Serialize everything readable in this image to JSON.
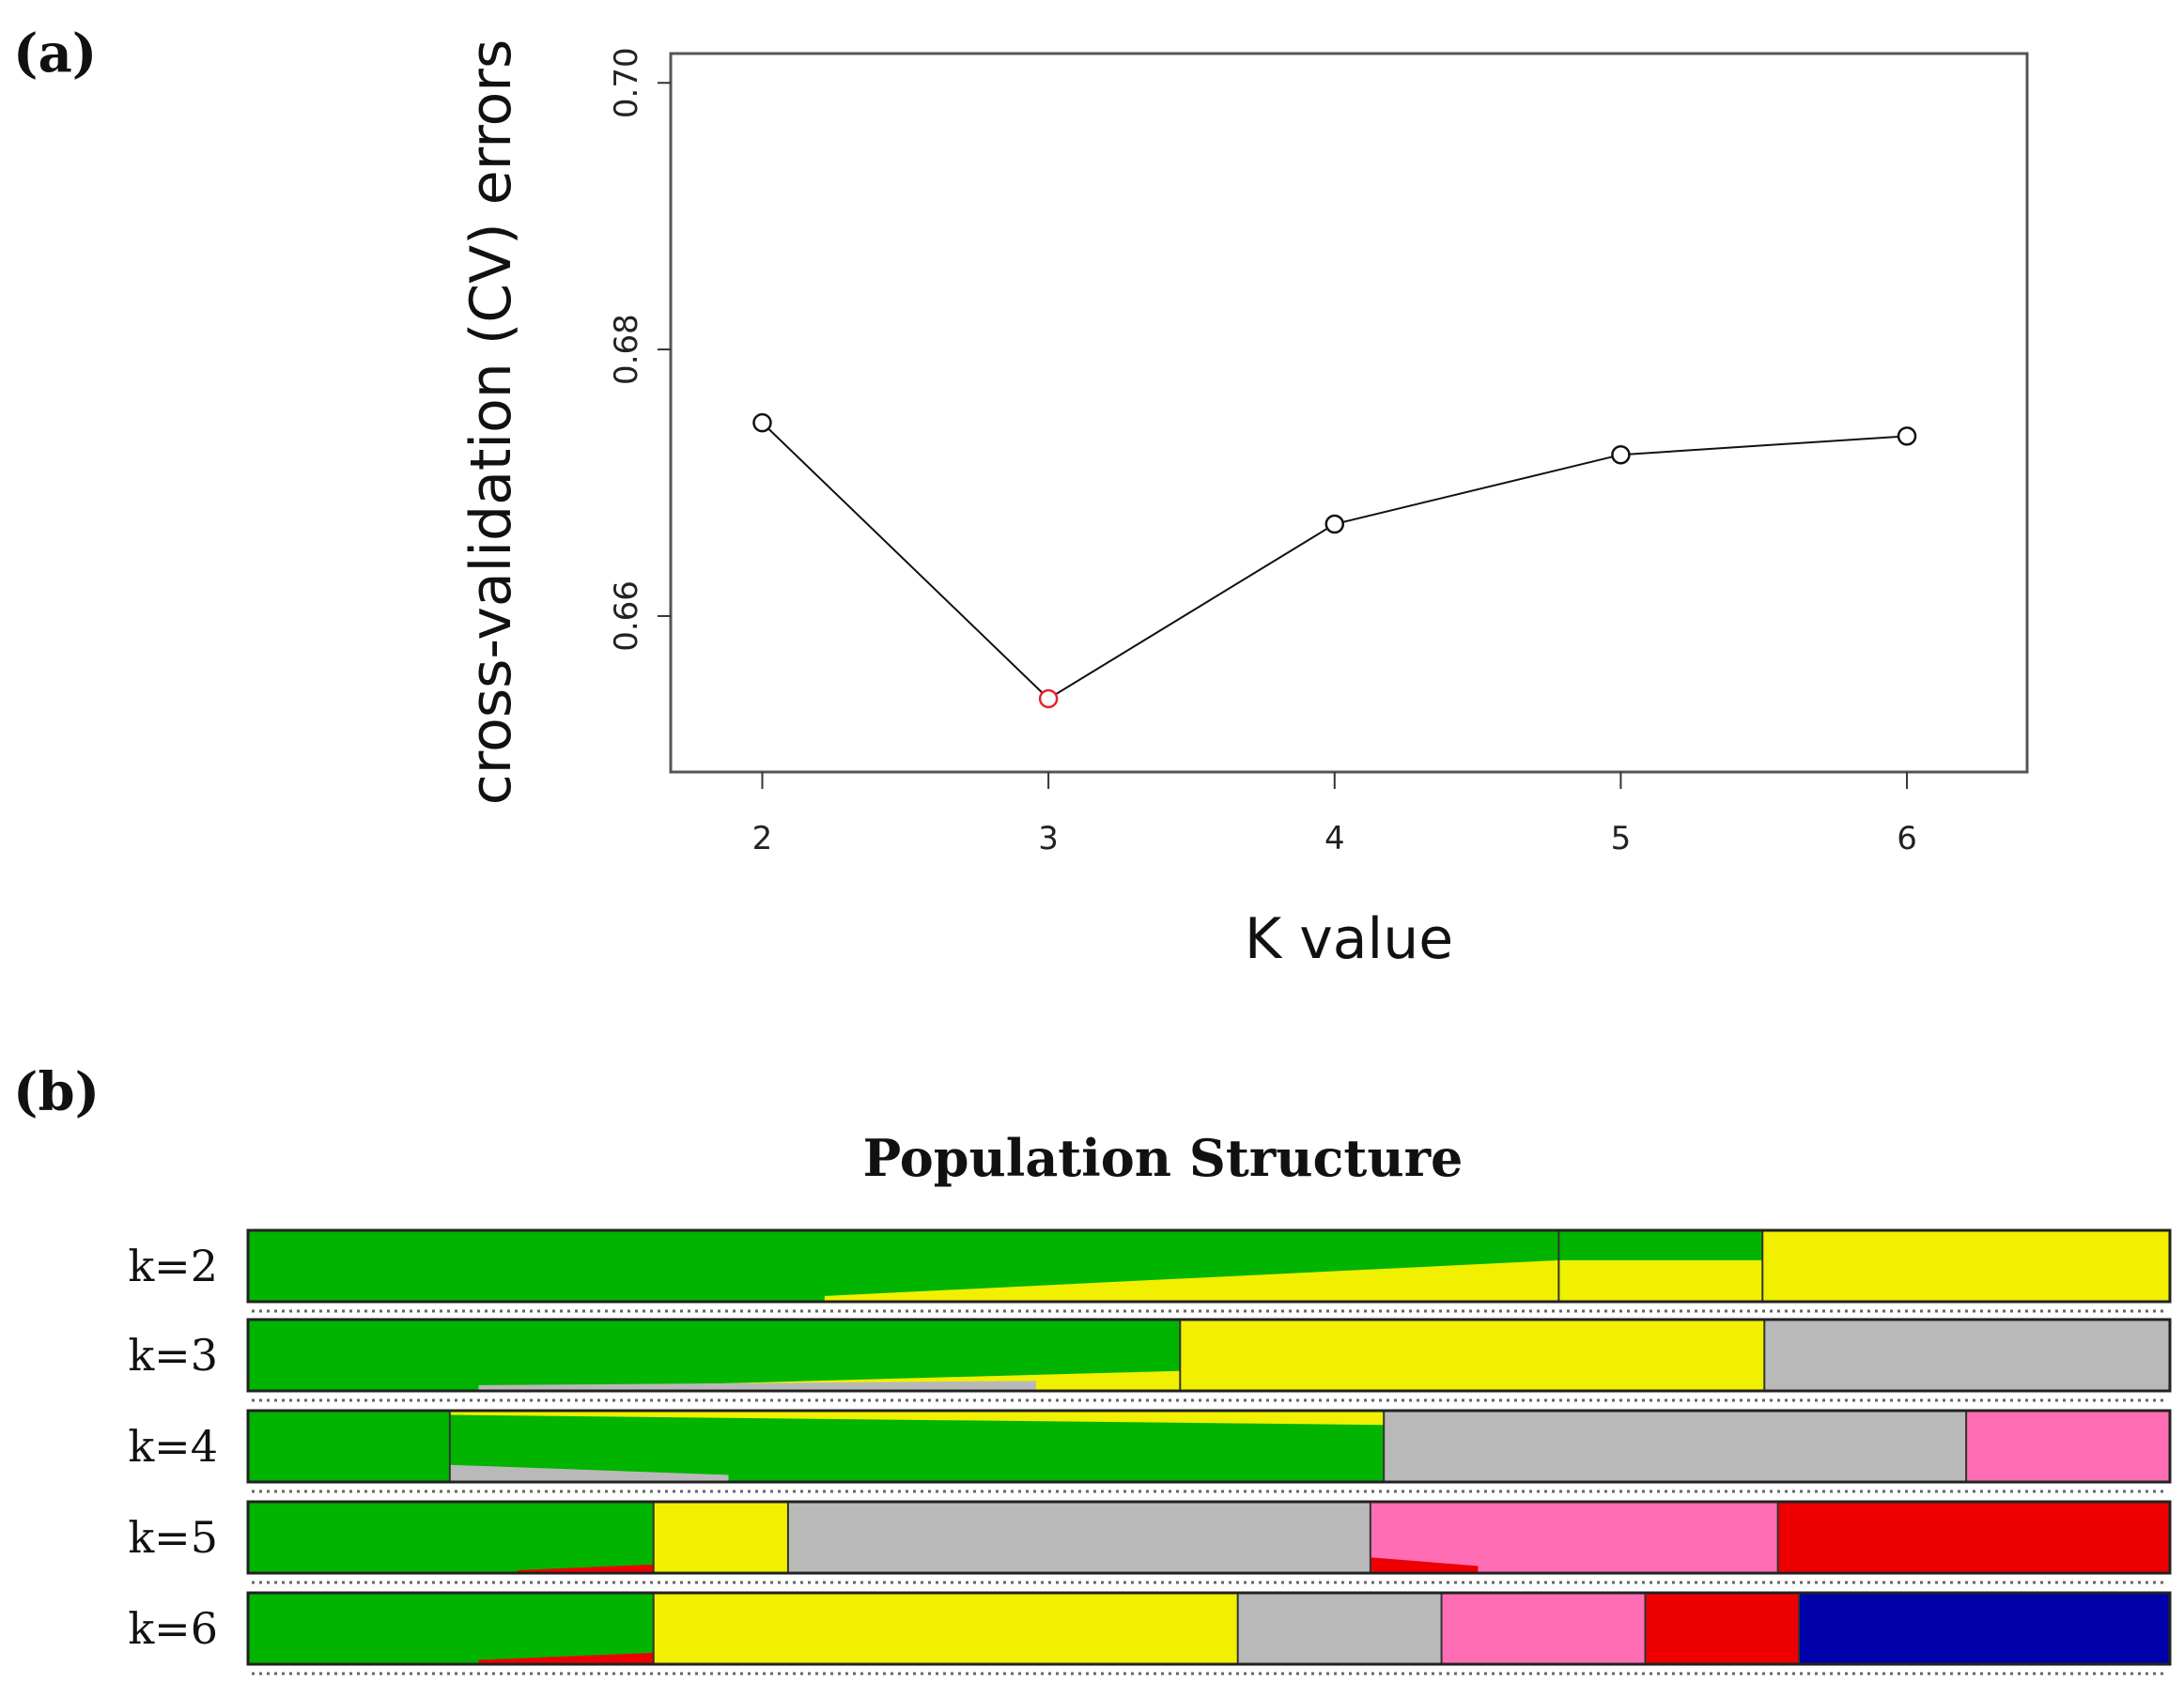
{
  "panel_a_label": "(a)",
  "panel_b_label": "(b)",
  "chart_data": [
    {
      "type": "line",
      "title": "",
      "xlabel": "K value",
      "ylabel": "cross-validation (CV) errors",
      "x": [
        2,
        3,
        4,
        5,
        6
      ],
      "y": [
        0.6745,
        0.6538,
        0.6669,
        0.6721,
        0.6735
      ],
      "highlight_index": 1,
      "highlight_color": "#e8212a",
      "marker": "open-circle",
      "xlim": [
        1.68,
        6.42
      ],
      "ylim": [
        0.6483,
        0.7022
      ],
      "xticks": [
        "2",
        "3",
        "4",
        "5",
        "6"
      ],
      "yticks": [
        0.66,
        0.68,
        0.7
      ],
      "ytick_labels": [
        "0.66",
        "0.68",
        "0.70"
      ]
    },
    {
      "type": "bar",
      "subtype": "stacked-admixture",
      "title": "Population Structure",
      "colors": {
        "green": "#00b400",
        "yellow": "#f0f000",
        "gray": "#b9b9b9",
        "pink": "#ff6eb4",
        "red": "#ee0000",
        "blue": "#0000aa"
      },
      "rows": [
        {
          "label": "k=2",
          "segments": [
            {
              "color": "green",
              "fraction": 0.682
            },
            {
              "color": "green",
              "fraction": 0.106
            },
            {
              "color": "yellow",
              "fraction": 0.212
            }
          ],
          "overlay": {
            "color": "yellow",
            "from": 0.3,
            "to": 0.682,
            "top_start": 0.92,
            "top_end": 0.42
          },
          "overlay2": {
            "color": "yellow",
            "from": 0.682,
            "to": 0.788,
            "top_start": 0.42,
            "top_end": 0.42
          }
        },
        {
          "label": "k=3",
          "segments": [
            {
              "color": "green",
              "fraction": 0.485
            },
            {
              "color": "yellow",
              "fraction": 0.304
            },
            {
              "color": "gray",
              "fraction": 0.211
            }
          ],
          "overlay": {
            "color": "yellow",
            "from": 0.1,
            "to": 0.485,
            "top_start": 1.0,
            "top_end": 0.72
          },
          "overlay2": {
            "color": "gray",
            "from": 0.12,
            "to": 0.41,
            "top_start": 0.92,
            "top_end": 0.86
          }
        },
        {
          "label": "k=4",
          "segments": [
            {
              "color": "green",
              "fraction": 0.105
            },
            {
              "color": "yellow",
              "fraction": 0.486
            },
            {
              "color": "gray",
              "fraction": 0.303
            },
            {
              "color": "pink",
              "fraction": 0.106
            }
          ],
          "overlay": {
            "color": "green",
            "from": 0.105,
            "to": 0.591,
            "top_start": 0.06,
            "top_end": 0.2
          },
          "overlay2": {
            "color": "gray",
            "from": 0.105,
            "to": 0.25,
            "top_start": 0.76,
            "top_end": 0.9
          }
        },
        {
          "label": "k=5",
          "segments": [
            {
              "color": "green",
              "fraction": 0.211
            },
            {
              "color": "yellow",
              "fraction": 0.07
            },
            {
              "color": "gray",
              "fraction": 0.303
            },
            {
              "color": "pink",
              "fraction": 0.212
            },
            {
              "color": "red",
              "fraction": 0.204
            }
          ],
          "overlay": {
            "color": "red",
            "from": 0.14,
            "to": 0.211,
            "top_start": 0.96,
            "top_end": 0.88
          },
          "overlay2": {
            "color": "red",
            "from": 0.584,
            "to": 0.64,
            "top_start": 0.78,
            "top_end": 0.9
          }
        },
        {
          "label": "k=6",
          "segments": [
            {
              "color": "green",
              "fraction": 0.211
            },
            {
              "color": "yellow",
              "fraction": 0.304
            },
            {
              "color": "gray",
              "fraction": 0.106
            },
            {
              "color": "pink",
              "fraction": 0.106
            },
            {
              "color": "red",
              "fraction": 0.08
            },
            {
              "color": "blue",
              "fraction": 0.193
            }
          ],
          "overlay": {
            "color": "blue",
            "from": 0.82,
            "to": 1.0,
            "top_start": 0.42,
            "top_end": 0.0
          },
          "overlay2": {
            "color": "red",
            "from": 0.12,
            "to": 0.211,
            "top_start": 0.94,
            "top_end": 0.84
          }
        }
      ]
    }
  ]
}
